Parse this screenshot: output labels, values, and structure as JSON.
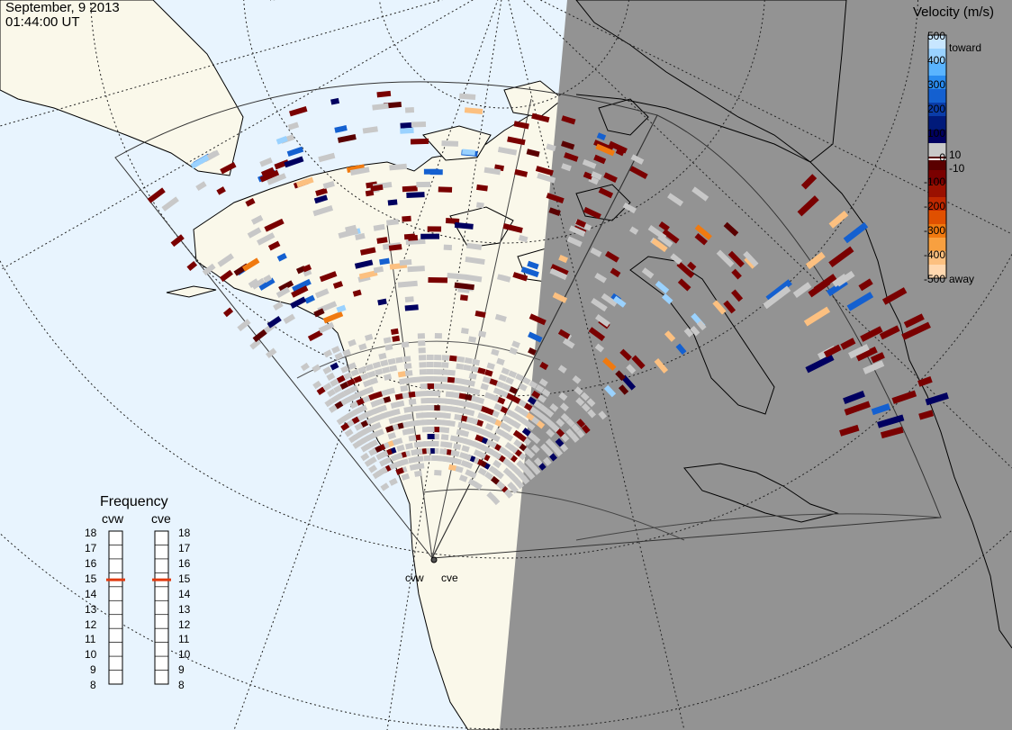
{
  "header": {
    "date": "September, 9 2013",
    "time": "01:44:00 UT"
  },
  "colors": {
    "ocean": "#e8f4fe",
    "land": "#faf8ea",
    "night": "#939393",
    "ground_scatter": "#c8c8c8"
  },
  "velocity_legend": {
    "title": "Velocity (m/s)",
    "ticks": [
      "500",
      "400",
      "300",
      "200",
      "100",
      "10",
      "0",
      "-10",
      "-100",
      "-200",
      "-300",
      "-400",
      "-500"
    ],
    "toward_label": "toward",
    "away_label": "away",
    "scale_colors": [
      "#c8e6ff",
      "#9ad2ff",
      "#5ab4ff",
      "#2a8cf0",
      "#1460d0",
      "#0a3ca8",
      "#001a7a",
      "#000060",
      "#c8c8c8",
      "#5a0000",
      "#7a0000",
      "#9a1000",
      "#c02800",
      "#e05000",
      "#f07a10",
      "#f8a040",
      "#fcc080",
      "#ffd8b0"
    ]
  },
  "frequency_legend": {
    "title": "Frequency",
    "stations": [
      {
        "name": "cvw",
        "selected_mhz": 15
      },
      {
        "name": "cve",
        "selected_mhz": 15
      }
    ],
    "ticks": [
      "18",
      "17",
      "16",
      "15",
      "14",
      "13",
      "12",
      "11",
      "10",
      "9",
      "8"
    ]
  },
  "stations": [
    "cvw",
    "cve"
  ]
}
